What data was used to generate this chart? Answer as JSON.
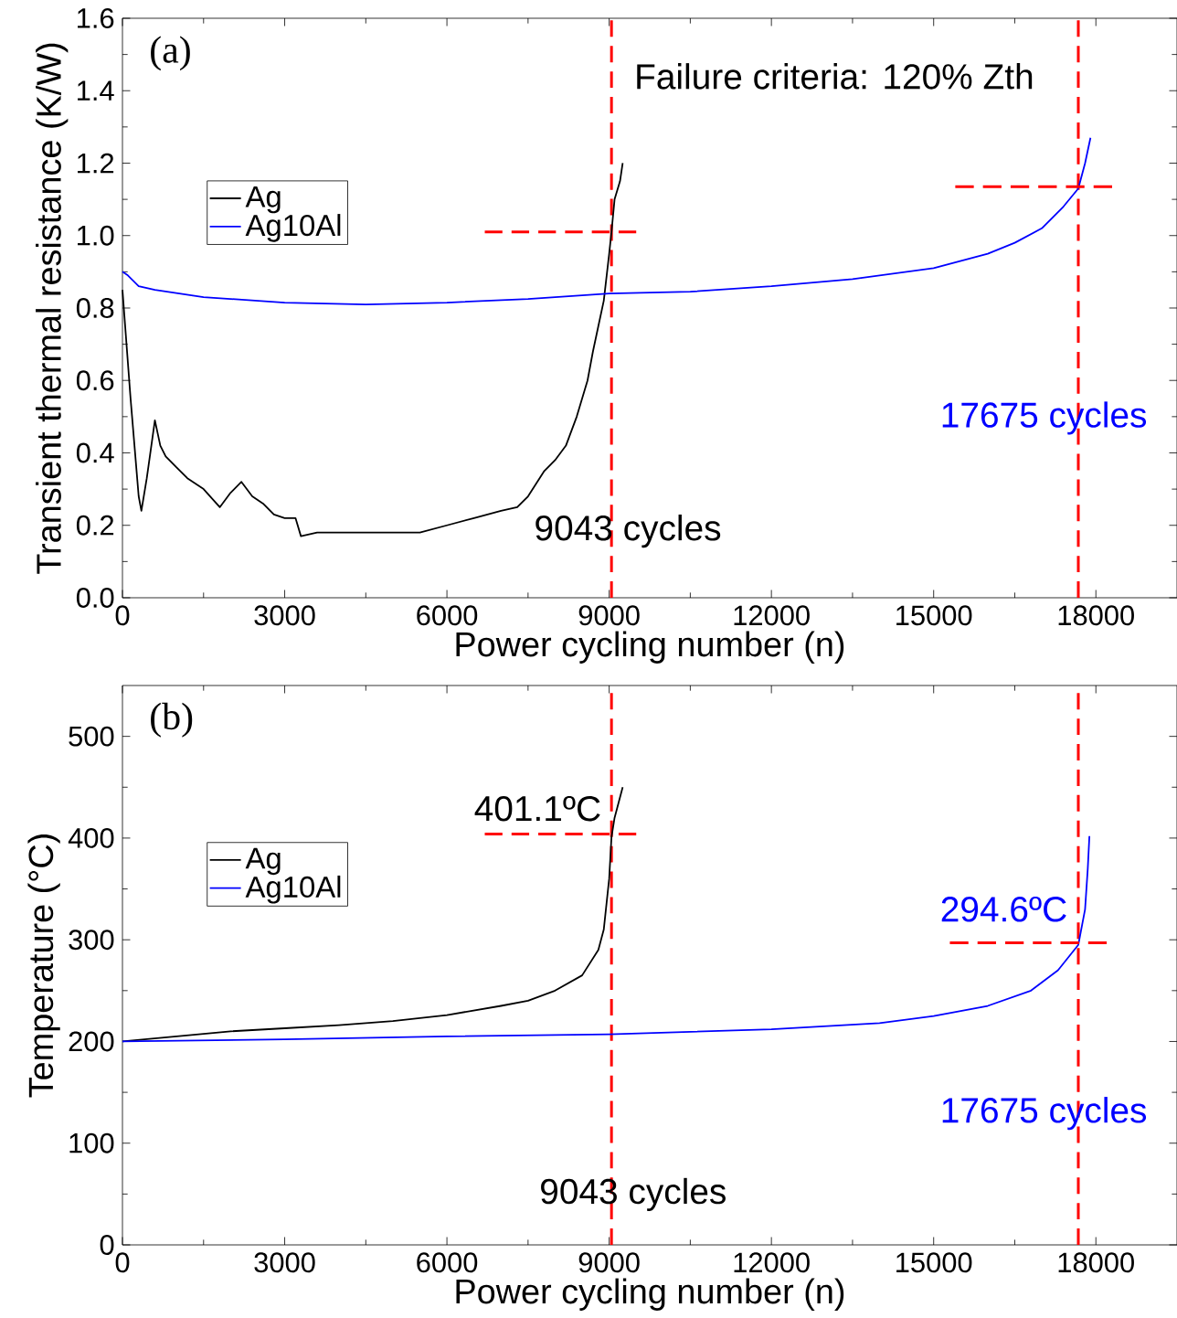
{
  "chart_data": [
    {
      "type": "line",
      "xlabel": "Power cycling number (n)",
      "ylabel": "Transient thermal resistance (K/W)",
      "xlim": [
        0,
        19500
      ],
      "xticks": [
        0,
        3000,
        6000,
        9000,
        12000,
        15000,
        18000
      ],
      "ylim": [
        0,
        1.6
      ],
      "yticks": [
        {
          "value": 0,
          "label": "0.0"
        },
        0.2,
        0.4,
        0.6,
        0.8,
        {
          "value": 1,
          "label": "1.0"
        },
        1.2,
        1.4,
        1.6
      ],
      "legend": "top left",
      "grid": false,
      "series": [
        {
          "name": "Ag",
          "color": "#000000",
          "x": [
            0,
            50,
            150,
            300,
            350,
            450,
            600,
            700,
            800,
            1000,
            1200,
            1500,
            1800,
            2000,
            2200,
            2400,
            2600,
            2800,
            3000,
            3200,
            3300,
            3600,
            4000,
            4500,
            5000,
            5500,
            6000,
            6500,
            7000,
            7300,
            7500,
            7800,
            8000,
            8200,
            8400,
            8600,
            8700,
            8800,
            8900,
            9000,
            9043,
            9100,
            9200,
            9250
          ],
          "values": [
            0.85,
            0.75,
            0.55,
            0.28,
            0.24,
            0.33,
            0.49,
            0.42,
            0.39,
            0.36,
            0.33,
            0.3,
            0.25,
            0.29,
            0.32,
            0.28,
            0.26,
            0.23,
            0.22,
            0.22,
            0.17,
            0.18,
            0.18,
            0.18,
            0.18,
            0.18,
            0.2,
            0.22,
            0.24,
            0.25,
            0.28,
            0.35,
            0.38,
            0.42,
            0.5,
            0.6,
            0.68,
            0.75,
            0.82,
            0.95,
            1.01,
            1.1,
            1.15,
            1.2
          ]
        },
        {
          "name": "Ag10Al",
          "color": "#0000ff",
          "x": [
            0,
            100,
            300,
            600,
            1500,
            3000,
            4500,
            6000,
            7500,
            9000,
            10500,
            12000,
            13500,
            15000,
            16000,
            16500,
            17000,
            17400,
            17675,
            17800,
            17900
          ],
          "values": [
            0.9,
            0.89,
            0.86,
            0.85,
            0.83,
            0.815,
            0.81,
            0.815,
            0.825,
            0.84,
            0.845,
            0.86,
            0.88,
            0.91,
            0.95,
            0.98,
            1.02,
            1.08,
            1.13,
            1.2,
            1.27
          ]
        },
        {
          "color": "#ff0000",
          "line_style": "dashed",
          "x": [
            6700,
            9500
          ],
          "values": [
            1.01,
            1.01
          ]
        },
        {
          "color": "#ff0000",
          "line_style": "dashed",
          "x": [
            15400,
            18300
          ],
          "values": [
            1.135,
            1.135
          ]
        }
      ],
      "ref_lines": [
        {
          "axis": "x",
          "value": 9043,
          "color": "#ff0000",
          "line_style": "dashed"
        },
        {
          "axis": "x",
          "value": 17675,
          "color": "#ff0000",
          "line_style": "dashed"
        }
      ],
      "annotations": [
        "(a)",
        "Failure criteria: 120% Zth",
        "9043 cycles",
        "17675 cycles"
      ]
    },
    {
      "type": "line",
      "xlabel": "Power cycling number (n)",
      "ylabel": "Temperature (°C)",
      "xlim": [
        0,
        19500
      ],
      "xticks": [
        0,
        3000,
        6000,
        9000,
        12000,
        15000,
        18000
      ],
      "ylim": [
        0,
        550
      ],
      "yticks": [
        0,
        100,
        200,
        300,
        400,
        500
      ],
      "legend": "top left",
      "grid": false,
      "series": [
        {
          "name": "Ag",
          "color": "#000000",
          "x": [
            0,
            1000,
            2000,
            3000,
            4000,
            5000,
            6000,
            7000,
            7500,
            8000,
            8500,
            8800,
            8900,
            9000,
            9043,
            9100,
            9250
          ],
          "values": [
            200,
            205,
            210,
            213,
            216,
            220,
            226,
            235,
            240,
            250,
            265,
            290,
            310,
            360,
            401,
            420,
            450
          ]
        },
        {
          "name": "Ag10Al",
          "color": "#0000ff",
          "x": [
            0,
            3000,
            6000,
            9000,
            12000,
            14000,
            15000,
            16000,
            16800,
            17300,
            17675,
            17800,
            17850,
            17880
          ],
          "values": [
            200,
            202,
            205,
            207,
            212,
            218,
            225,
            235,
            250,
            270,
            295,
            330,
            370,
            402
          ]
        },
        {
          "color": "#ff0000",
          "line_style": "dashed",
          "x": [
            6700,
            9500
          ],
          "values": [
            404,
            404
          ]
        },
        {
          "color": "#ff0000",
          "line_style": "dashed",
          "x": [
            15300,
            18200
          ],
          "values": [
            297,
            297
          ]
        }
      ],
      "ref_lines": [
        {
          "axis": "x",
          "value": 9043,
          "color": "#ff0000",
          "line_style": "dashed"
        },
        {
          "axis": "x",
          "value": 17675,
          "color": "#ff0000",
          "line_style": "dashed"
        }
      ],
      "annotations": [
        "(b)",
        "401.1ºC",
        "294.6ºC",
        "9043 cycles",
        "17675 cycles"
      ]
    }
  ]
}
